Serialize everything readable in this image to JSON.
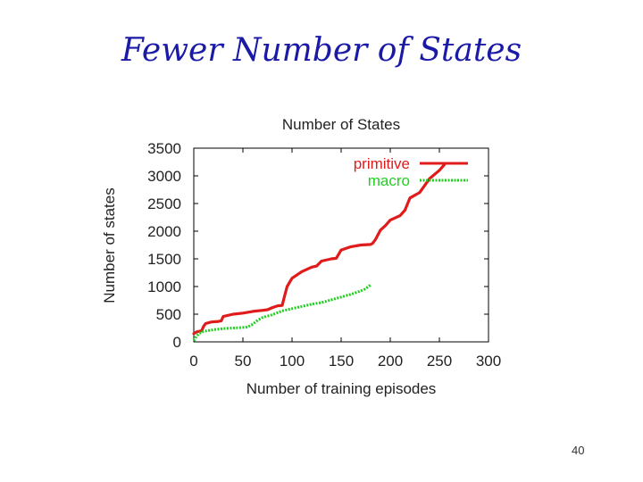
{
  "slide": {
    "title": "Fewer Number of States",
    "page_number": "40"
  },
  "colors": {
    "title": "#1a1aa6",
    "primitive": "#e01b1b",
    "macro": "#1ed01e"
  },
  "chart_data": {
    "type": "line",
    "title": "Number of States",
    "xlabel": "Number of training episodes",
    "ylabel": "Number of states",
    "xlim": [
      0,
      300
    ],
    "ylim": [
      0,
      3500
    ],
    "xticks": [
      "0",
      "50",
      "100",
      "150",
      "200",
      "250",
      "300"
    ],
    "yticks": [
      "0",
      "500",
      "1000",
      "1500",
      "2000",
      "2500",
      "3000",
      "3500"
    ],
    "grid": false,
    "legend_position": "top-right",
    "series": [
      {
        "name": "primitive",
        "color": "#e01b1b",
        "style": "solid",
        "x": [
          0,
          3,
          8,
          10,
          12,
          18,
          25,
          28,
          30,
          40,
          50,
          60,
          70,
          75,
          80,
          85,
          90,
          92,
          95,
          100,
          110,
          120,
          125,
          130,
          140,
          145,
          150,
          160,
          170,
          180,
          182,
          185,
          190,
          195,
          200,
          210,
          215,
          220,
          230,
          240,
          250,
          255
        ],
        "y": [
          150,
          180,
          200,
          280,
          330,
          360,
          370,
          380,
          460,
          500,
          520,
          550,
          570,
          580,
          620,
          650,
          660,
          800,
          1000,
          1150,
          1270,
          1350,
          1370,
          1460,
          1500,
          1510,
          1660,
          1720,
          1750,
          1760,
          1780,
          1850,
          2020,
          2100,
          2200,
          2280,
          2380,
          2600,
          2700,
          2950,
          3100,
          3200
        ]
      },
      {
        "name": "macro",
        "color": "#1ed01e",
        "style": "dotted",
        "x": [
          0,
          2,
          5,
          10,
          20,
          30,
          40,
          50,
          55,
          60,
          65,
          70,
          80,
          90,
          100,
          110,
          120,
          130,
          140,
          150,
          160,
          170,
          175,
          180
        ],
        "y": [
          20,
          80,
          150,
          190,
          220,
          240,
          250,
          260,
          270,
          320,
          390,
          440,
          490,
          560,
          600,
          640,
          680,
          710,
          760,
          810,
          860,
          920,
          960,
          1030
        ]
      }
    ]
  }
}
